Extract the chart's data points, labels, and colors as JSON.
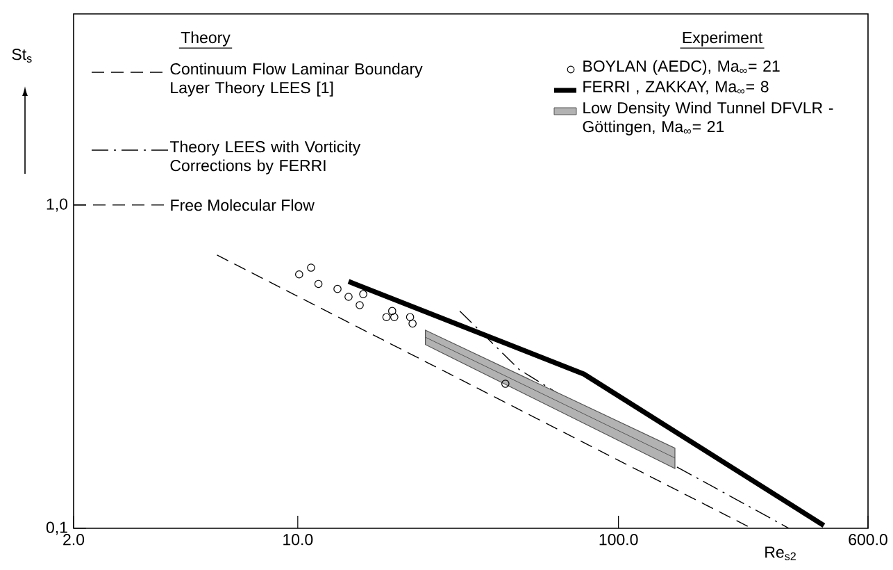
{
  "chart_data": {
    "type": "line",
    "xlabel": "Re$_{s2}$",
    "ylabel": "St$_{s}$",
    "log": "xy",
    "xlim": [
      2,
      600
    ],
    "ylim": [
      0.1,
      3.9
    ],
    "xticks": [
      {
        "value": 2,
        "label": "2.0"
      },
      {
        "value": 10,
        "label": "10.0"
      },
      {
        "value": 100,
        "label": "100.0"
      },
      {
        "value": 600,
        "label": "600.0"
      }
    ],
    "yticks": [
      {
        "value": 0.1,
        "label": "0,1"
      },
      {
        "value": 1,
        "label": "1,0"
      }
    ],
    "legend": "top",
    "annotations": [
      "Theory",
      "Experiment"
    ],
    "ref_lines": [
      {
        "axis": "y",
        "value": 1,
        "label": "Free Molecular Flow",
        "line_style": "dashed",
        "color": "#000000"
      }
    ],
    "series": [
      {
        "name": "Continuum Flow Laminar Boundary Layer Theory LEES [1]",
        "color": "#000000",
        "line_style": "dashed",
        "x": [
          5.6,
          260
        ],
        "values": [
          0.7,
          0.1
        ]
      },
      {
        "name": "Theory LEES with Vorticity Corrections by FERRI",
        "color": "#000000",
        "line_style": "dashdot",
        "x": [
          32,
          49,
          150,
          340
        ],
        "values": [
          0.47,
          0.31,
          0.156,
          0.1
        ]
      },
      {
        "name": "BOYLAN (AEDC), Ma$_{∞}$= 21",
        "type": "scatter",
        "color": "#000000",
        "marker": "circle",
        "x": [
          10.1,
          11.0,
          11.6,
          13.3,
          14.4,
          15.6,
          16.0,
          19.7,
          18.9,
          20.0,
          22.4,
          22.8,
          44.4
        ],
        "values": [
          0.61,
          0.64,
          0.57,
          0.55,
          0.52,
          0.49,
          0.53,
          0.47,
          0.45,
          0.45,
          0.45,
          0.43,
          0.28
        ]
      },
      {
        "name": "FERRI , ZAKKAY, Ma$_{∞}$= 8",
        "color": "#000000",
        "line_style": "solid",
        "x": [
          14.4,
          78,
          437
        ],
        "values": [
          0.58,
          0.3,
          0.102
        ]
      },
      {
        "name": "Low Density Wind Tunnel DFVLR - Göttingen, Ma$_{∞}$= 21",
        "color": "#555555",
        "line_style": "solid",
        "x": [
          25,
          150
        ],
        "values": [
          0.39,
          0.165
        ],
        "lower": [
          0.37,
          0.153
        ],
        "upper": [
          0.41,
          0.177
        ]
      }
    ]
  }
}
